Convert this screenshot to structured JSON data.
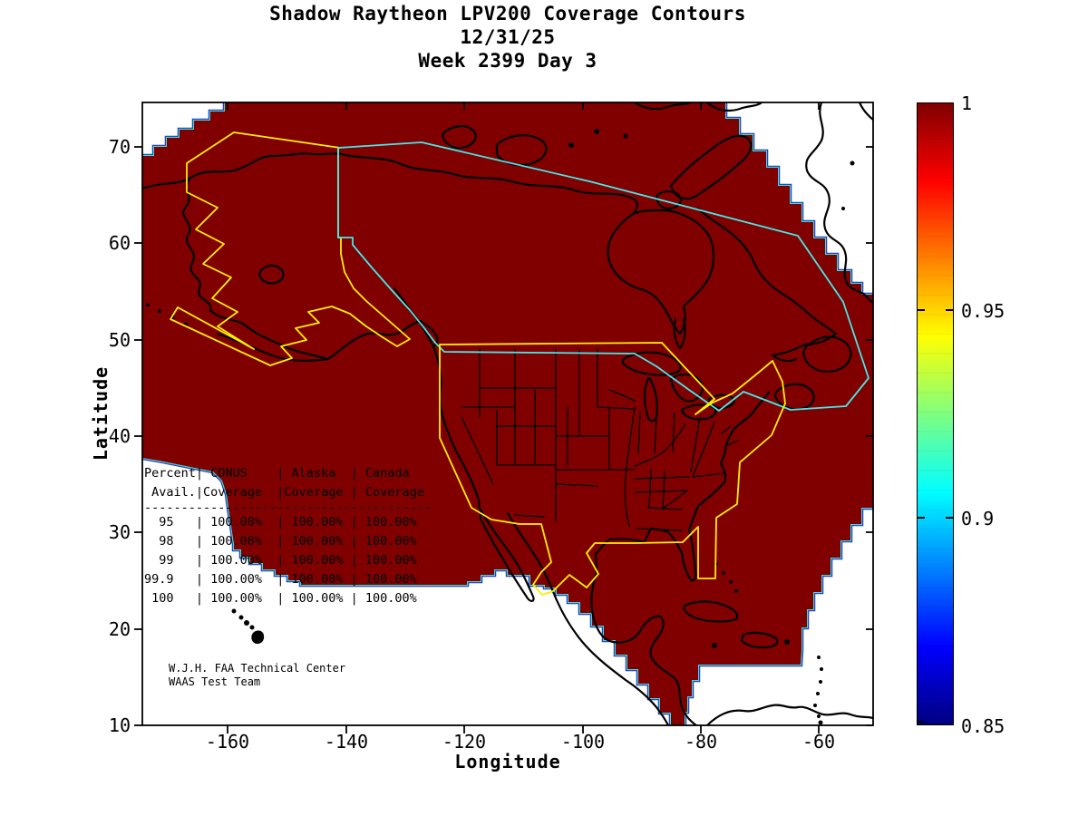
{
  "title": {
    "line1": "Shadow Raytheon LPV200 Coverage Contours",
    "line2": "12/31/25",
    "line3": "Week 2399 Day 3"
  },
  "axes": {
    "xlabel": "Longitude",
    "ylabel": "Latitude",
    "x_ticks": [
      "-160",
      "-140",
      "-120",
      "-100",
      "-80",
      "-60"
    ],
    "y_ticks": [
      "70",
      "60",
      "50",
      "40",
      "30",
      "20",
      "10"
    ]
  },
  "colorbar": {
    "tick_labels": [
      "1",
      "0.95",
      "0.9",
      "0.85"
    ],
    "min": 0.85,
    "max": 1,
    "colormap": "jet",
    "top_color": "#800000",
    "bottom_color": "#000080"
  },
  "coverage_table": {
    "columns": [
      "Percent Avail.",
      "CONUS Coverage",
      "Alaska Coverage",
      "Canada Coverage"
    ],
    "rows": [
      [
        "95",
        "100.00%",
        "100.00%",
        "100.00%"
      ],
      [
        "98",
        "100.00%",
        "100.00%",
        "100.00%"
      ],
      [
        "99",
        "100.00%",
        "100.00%",
        "100.00%"
      ],
      [
        "99.9",
        "100.00%",
        "100.00%",
        "100.00%"
      ],
      [
        "100",
        "100.00%",
        "100.00%",
        "100.00%"
      ]
    ],
    "display_lines": [
      "Percent| CONUS    | Alaska  | Canada",
      " Avail.|Coverage  |Coverage | Coverage",
      "---------------------------------------",
      "  95   | 100.00%  | 100.00% | 100.00%",
      "  98   | 100.00%  | 100.00% | 100.00%",
      "  99   | 100.00%  | 100.00% | 100.00%",
      "99.9   | 100.00%  | 100.00% | 100.00%",
      " 100   | 100.00%  | 100.00% | 100.00%"
    ]
  },
  "credit": {
    "line1": "W.J.H. FAA Technical Center",
    "line2": "WAAS Test Team"
  },
  "map_colors": {
    "coverage_fill": "#800000",
    "conus_alaska_boundary": "#ffee00",
    "canada_boundary": "#45e8e8",
    "coastline": "#000000",
    "background": "#ffffff"
  },
  "chart_data": {
    "type": "heatmap",
    "title": "Shadow Raytheon LPV200 Coverage Contours 12/31/25 Week 2399 Day 3",
    "xlabel": "Longitude",
    "ylabel": "Latitude",
    "xlim": [
      -175,
      -50.5
    ],
    "ylim": [
      10,
      74.6
    ],
    "x_ticks": [
      -160,
      -140,
      -120,
      -100,
      -80,
      -60
    ],
    "y_ticks": [
      70,
      60,
      50,
      40,
      30,
      20,
      10
    ],
    "grid": false,
    "colorbar": {
      "range": [
        0.85,
        1
      ],
      "tick_values": [
        1,
        0.95,
        0.9,
        0.85
      ],
      "colormap": "jet",
      "position": "right"
    },
    "coverage_value_displayed": 1.0,
    "regions": [
      {
        "name": "CONUS",
        "outline_color": "#ffee00",
        "coverage": "100.00%"
      },
      {
        "name": "Alaska",
        "outline_color": "#ffee00",
        "coverage": "100.00%"
      },
      {
        "name": "Canada",
        "outline_color": "#45e8e8",
        "coverage": "100.00%"
      }
    ],
    "availability_table": {
      "percent_avail": [
        "95",
        "98",
        "99",
        "99.9",
        "100"
      ],
      "conus_coverage": [
        "100.00%",
        "100.00%",
        "100.00%",
        "100.00%",
        "100.00%"
      ],
      "alaska_coverage": [
        "100.00%",
        "100.00%",
        "100.00%",
        "100.00%",
        "100.00%"
      ],
      "canada_coverage": [
        "100.00%",
        "100.00%",
        "100.00%",
        "100.00%",
        "100.00%"
      ]
    }
  }
}
